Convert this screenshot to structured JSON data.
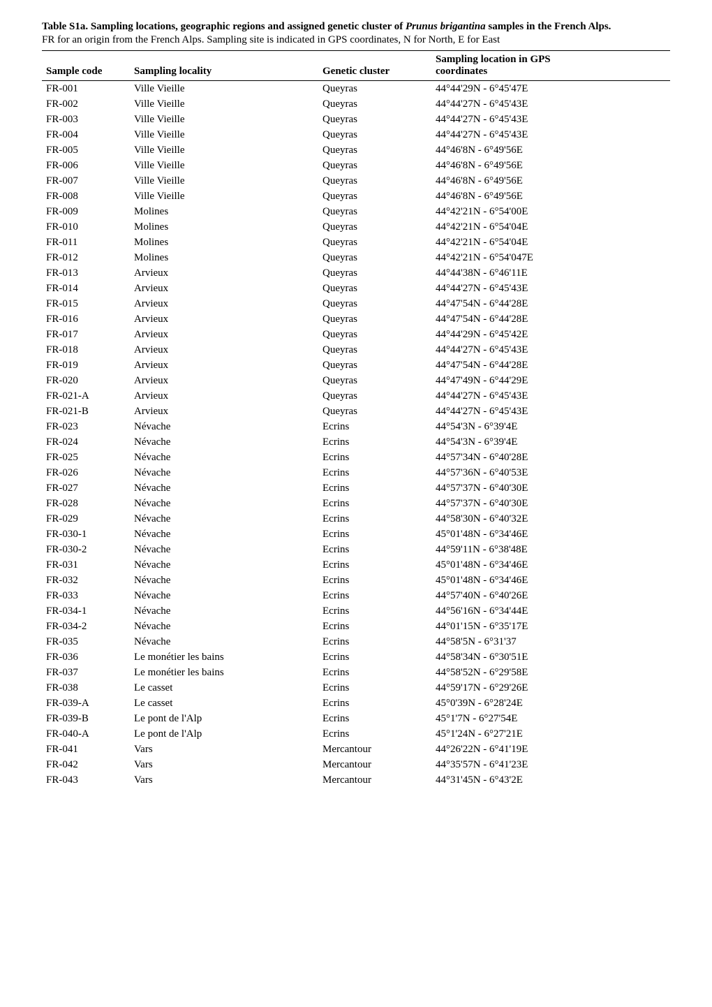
{
  "header": {
    "title_prefix": "Table S1a. Sampling locations, geographic regions and assigned genetic cluster of ",
    "title_italic1": "Prunus brigantina",
    "title_suffix": " samples in the French Alps.",
    "caption": "FR for an origin from the French Alps. Sampling site is indicated in GPS coordinates, N for North, E for East"
  },
  "columns": {
    "code": "Sample code",
    "locality": "Sampling locality",
    "cluster": "Genetic cluster",
    "gps_line1": "Sampling location in GPS",
    "gps_line2": "coordinates"
  },
  "rows": [
    {
      "code": "FR-001",
      "loc": "Ville Vieille",
      "clu": "Queyras",
      "gps": "44°44'29N - 6°45'47E"
    },
    {
      "code": "FR-002",
      "loc": "Ville Vieille",
      "clu": "Queyras",
      "gps": "44°44'27N - 6°45'43E"
    },
    {
      "code": "FR-003",
      "loc": "Ville Vieille",
      "clu": "Queyras",
      "gps": "44°44'27N - 6°45'43E"
    },
    {
      "code": "FR-004",
      "loc": "Ville Vieille",
      "clu": "Queyras",
      "gps": "44°44'27N - 6°45'43E"
    },
    {
      "code": "FR-005",
      "loc": "Ville Vieille",
      "clu": "Queyras",
      "gps": "44°46'8N - 6°49'56E"
    },
    {
      "code": "FR-006",
      "loc": "Ville Vieille",
      "clu": "Queyras",
      "gps": "44°46'8N - 6°49'56E"
    },
    {
      "code": "FR-007",
      "loc": "Ville Vieille",
      "clu": "Queyras",
      "gps": "44°46'8N - 6°49'56E"
    },
    {
      "code": "FR-008",
      "loc": "Ville Vieille",
      "clu": "Queyras",
      "gps": "44°46'8N - 6°49'56E"
    },
    {
      "code": "FR-009",
      "loc": "Molines",
      "clu": "Queyras",
      "gps": "44°42'21N - 6°54'00E"
    },
    {
      "code": "FR-010",
      "loc": "Molines",
      "clu": "Queyras",
      "gps": "44°42'21N - 6°54'04E"
    },
    {
      "code": "FR-011",
      "loc": "Molines",
      "clu": "Queyras",
      "gps": "44°42'21N - 6°54'04E"
    },
    {
      "code": "FR-012",
      "loc": "Molines",
      "clu": "Queyras",
      "gps": "44°42'21N - 6°54'047E"
    },
    {
      "code": "FR-013",
      "loc": "Arvieux",
      "clu": "Queyras",
      "gps": "44°44'38N - 6°46'11E"
    },
    {
      "code": "FR-014",
      "loc": "Arvieux",
      "clu": "Queyras",
      "gps": "44°44'27N - 6°45'43E"
    },
    {
      "code": "FR-015",
      "loc": "Arvieux",
      "clu": "Queyras",
      "gps": "44°47'54N - 6°44'28E"
    },
    {
      "code": "FR-016",
      "loc": "Arvieux",
      "clu": "Queyras",
      "gps": "44°47'54N - 6°44'28E"
    },
    {
      "code": "FR-017",
      "loc": "Arvieux",
      "clu": "Queyras",
      "gps": "44°44'29N - 6°45'42E"
    },
    {
      "code": "FR-018",
      "loc": "Arvieux",
      "clu": "Queyras",
      "gps": "44°44'27N - 6°45'43E"
    },
    {
      "code": "FR-019",
      "loc": "Arvieux",
      "clu": "Queyras",
      "gps": "44°47'54N - 6°44'28E"
    },
    {
      "code": "FR-020",
      "loc": "Arvieux",
      "clu": "Queyras",
      "gps": "44°47'49N - 6°44'29E"
    },
    {
      "code": "FR-021-A",
      "loc": "Arvieux",
      "clu": "Queyras",
      "gps": "44°44'27N - 6°45'43E"
    },
    {
      "code": "FR-021-B",
      "loc": "Arvieux",
      "clu": "Queyras",
      "gps": "44°44'27N - 6°45'43E"
    },
    {
      "code": "FR-023",
      "loc": "Névache",
      "clu": "Ecrins",
      "gps": "44°54'3N - 6°39'4E"
    },
    {
      "code": "FR-024",
      "loc": "Névache",
      "clu": "Ecrins",
      "gps": "44°54'3N - 6°39'4E"
    },
    {
      "code": "FR-025",
      "loc": "Névache",
      "clu": "Ecrins",
      "gps": "44°57'34N - 6°40'28E"
    },
    {
      "code": "FR-026",
      "loc": "Névache",
      "clu": "Ecrins",
      "gps": "44°57'36N - 6°40'53E"
    },
    {
      "code": "FR-027",
      "loc": "Névache",
      "clu": "Ecrins",
      "gps": "44°57'37N - 6°40'30E"
    },
    {
      "code": "FR-028",
      "loc": "Névache",
      "clu": "Ecrins",
      "gps": "44°57'37N - 6°40'30E"
    },
    {
      "code": "FR-029",
      "loc": "Névache",
      "clu": "Ecrins",
      "gps": "44°58'30N - 6°40'32E"
    },
    {
      "code": "FR-030-1",
      "loc": "Névache",
      "clu": "Ecrins",
      "gps": "45°01'48N - 6°34'46E"
    },
    {
      "code": "FR-030-2",
      "loc": "Névache",
      "clu": "Ecrins",
      "gps": "44°59'11N - 6°38'48E"
    },
    {
      "code": "FR-031",
      "loc": "Névache",
      "clu": "Ecrins",
      "gps": "45°01'48N - 6°34'46E"
    },
    {
      "code": "FR-032",
      "loc": "Névache",
      "clu": "Ecrins",
      "gps": "45°01'48N - 6°34'46E"
    },
    {
      "code": "FR-033",
      "loc": "Névache",
      "clu": "Ecrins",
      "gps": "44°57'40N - 6°40'26E"
    },
    {
      "code": "FR-034-1",
      "loc": "Névache",
      "clu": "Ecrins",
      "gps": "44°56'16N - 6°34'44E"
    },
    {
      "code": "FR-034-2",
      "loc": "Névache",
      "clu": "Ecrins",
      "gps": "44°01'15N - 6°35'17E"
    },
    {
      "code": "FR-035",
      "loc": "Névache",
      "clu": "Ecrins",
      "gps": "44°58'5N - 6°31'37"
    },
    {
      "code": "FR-036",
      "loc": "Le monétier les bains",
      "clu": "Ecrins",
      "gps": "44°58'34N - 6°30'51E"
    },
    {
      "code": "FR-037",
      "loc": "Le monétier les bains",
      "clu": "Ecrins",
      "gps": "44°58'52N - 6°29'58E"
    },
    {
      "code": "FR-038",
      "loc": "Le casset",
      "clu": "Ecrins",
      "gps": "44°59'17N - 6°29'26E"
    },
    {
      "code": "FR-039-A",
      "loc": "Le casset",
      "clu": "Ecrins",
      "gps": "45°0'39N - 6°28'24E"
    },
    {
      "code": "FR-039-B",
      "loc": "Le pont de l'Alp",
      "clu": "Ecrins",
      "gps": "45°1'7N - 6°27'54E"
    },
    {
      "code": "FR-040-A",
      "loc": "Le pont de l'Alp",
      "clu": "Ecrins",
      "gps": "45°1'24N - 6°27'21E"
    },
    {
      "code": "FR-041",
      "loc": "Vars",
      "clu": "Mercantour",
      "gps": "44°26'22N - 6°41'19E"
    },
    {
      "code": "FR-042",
      "loc": "Vars",
      "clu": "Mercantour",
      "gps": "44°35'57N - 6°41'23E"
    },
    {
      "code": "FR-043",
      "loc": "Vars",
      "clu": "Mercantour",
      "gps": "44°31'45N - 6°43'2E"
    }
  ]
}
